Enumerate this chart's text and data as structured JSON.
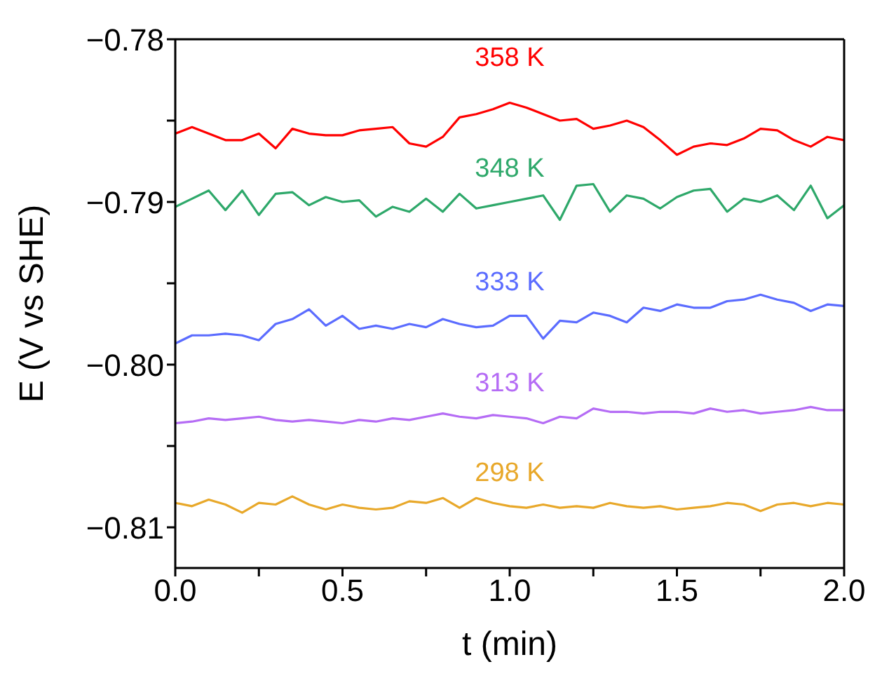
{
  "chart_data": {
    "type": "line",
    "xlabel": "t (min)",
    "ylabel": "E (V vs SHE)",
    "x": [
      0,
      0.05,
      0.1,
      0.15,
      0.2,
      0.25,
      0.3,
      0.35,
      0.4,
      0.45,
      0.5,
      0.55,
      0.6,
      0.65,
      0.7,
      0.75,
      0.8,
      0.85,
      0.9,
      0.95,
      1.0,
      1.05,
      1.1,
      1.15,
      1.2,
      1.25,
      1.3,
      1.35,
      1.4,
      1.45,
      1.5,
      1.55,
      1.6,
      1.65,
      1.7,
      1.75,
      1.8,
      1.85,
      1.9,
      1.95,
      2.0
    ],
    "series": [
      {
        "name": "358 K",
        "color": "#ff0000",
        "values": [
          -0.7858,
          -0.7854,
          -0.7858,
          -0.7862,
          -0.7862,
          -0.7858,
          -0.7867,
          -0.7855,
          -0.7858,
          -0.7859,
          -0.7859,
          -0.7856,
          -0.7855,
          -0.7854,
          -0.7864,
          -0.7866,
          -0.786,
          -0.7848,
          -0.7846,
          -0.7843,
          -0.7839,
          -0.7842,
          -0.7846,
          -0.785,
          -0.7849,
          -0.7855,
          -0.7853,
          -0.785,
          -0.7854,
          -0.7862,
          -0.7871,
          -0.7866,
          -0.7864,
          -0.7865,
          -0.7861,
          -0.7855,
          -0.7856,
          -0.7862,
          -0.7866,
          -0.786,
          -0.7862
        ]
      },
      {
        "name": "348 K",
        "color": "#2ea86a",
        "values": [
          -0.7903,
          -0.7898,
          -0.7893,
          -0.7905,
          -0.7893,
          -0.7908,
          -0.7895,
          -0.7894,
          -0.7902,
          -0.7897,
          -0.79,
          -0.7899,
          -0.7909,
          -0.7903,
          -0.7906,
          -0.7898,
          -0.7906,
          -0.7895,
          -0.7904,
          -0.7902,
          -0.79,
          -0.7898,
          -0.7896,
          -0.7911,
          -0.789,
          -0.7889,
          -0.7906,
          -0.7896,
          -0.7898,
          -0.7904,
          -0.7897,
          -0.7893,
          -0.7892,
          -0.7906,
          -0.7898,
          -0.79,
          -0.7896,
          -0.7905,
          -0.789,
          -0.791,
          -0.7902
        ]
      },
      {
        "name": "333 K",
        "color": "#5b6cff",
        "values": [
          -0.7987,
          -0.7982,
          -0.7982,
          -0.7981,
          -0.7982,
          -0.7985,
          -0.7975,
          -0.7972,
          -0.7966,
          -0.7976,
          -0.797,
          -0.7978,
          -0.7976,
          -0.7978,
          -0.7975,
          -0.7977,
          -0.7972,
          -0.7975,
          -0.7977,
          -0.7976,
          -0.797,
          -0.797,
          -0.7984,
          -0.7973,
          -0.7974,
          -0.7968,
          -0.797,
          -0.7974,
          -0.7965,
          -0.7967,
          -0.7963,
          -0.7965,
          -0.7965,
          -0.7961,
          -0.796,
          -0.7957,
          -0.796,
          -0.7962,
          -0.7967,
          -0.7963,
          -0.7964
        ]
      },
      {
        "name": "313 K",
        "color": "#b56cf5",
        "values": [
          -0.8036,
          -0.8035,
          -0.8033,
          -0.8034,
          -0.8033,
          -0.8032,
          -0.8034,
          -0.8035,
          -0.8034,
          -0.8035,
          -0.8036,
          -0.8034,
          -0.8035,
          -0.8033,
          -0.8034,
          -0.8032,
          -0.803,
          -0.8032,
          -0.8033,
          -0.8031,
          -0.8032,
          -0.8033,
          -0.8036,
          -0.8032,
          -0.8033,
          -0.8027,
          -0.8029,
          -0.8029,
          -0.803,
          -0.8029,
          -0.8029,
          -0.803,
          -0.8027,
          -0.8029,
          -0.8028,
          -0.803,
          -0.8029,
          -0.8028,
          -0.8026,
          -0.8028,
          -0.8028
        ]
      },
      {
        "name": "298 K",
        "color": "#e8a82a",
        "values": [
          -0.8085,
          -0.8087,
          -0.8083,
          -0.8086,
          -0.8091,
          -0.8085,
          -0.8086,
          -0.8081,
          -0.8086,
          -0.8089,
          -0.8086,
          -0.8088,
          -0.8089,
          -0.8088,
          -0.8084,
          -0.8085,
          -0.8082,
          -0.8088,
          -0.8082,
          -0.8085,
          -0.8087,
          -0.8088,
          -0.8086,
          -0.8088,
          -0.8087,
          -0.8088,
          -0.8085,
          -0.8087,
          -0.8088,
          -0.8087,
          -0.8089,
          -0.8088,
          -0.8087,
          -0.8085,
          -0.8086,
          -0.809,
          -0.8086,
          -0.8085,
          -0.8087,
          -0.8085,
          -0.8086
        ]
      }
    ],
    "xlim": [
      0,
      2
    ],
    "xticks": [
      {
        "value": 0,
        "label": "0.0"
      },
      {
        "value": 0.25,
        "label": null
      },
      {
        "value": 0.5,
        "label": "0.5"
      },
      {
        "value": 0.75,
        "label": null
      },
      {
        "value": 1,
        "label": "1.0"
      },
      {
        "value": 1.25,
        "label": null
      },
      {
        "value": 1.5,
        "label": "1.5"
      },
      {
        "value": 1.75,
        "label": null
      },
      {
        "value": 2,
        "label": "2.0"
      }
    ],
    "ylim": [
      -0.8125,
      -0.78
    ],
    "yticks": [
      {
        "value": -0.81,
        "label": "−0.81"
      },
      {
        "value": -0.805,
        "label": null
      },
      {
        "value": -0.8,
        "label": "−0.80"
      },
      {
        "value": -0.795,
        "label": null
      },
      {
        "value": -0.79,
        "label": "−0.79"
      },
      {
        "value": -0.785,
        "label": null
      },
      {
        "value": -0.78,
        "label": "−0.78"
      }
    ],
    "grid": false,
    "legend": false,
    "marker": "none",
    "line_style": "solid"
  }
}
